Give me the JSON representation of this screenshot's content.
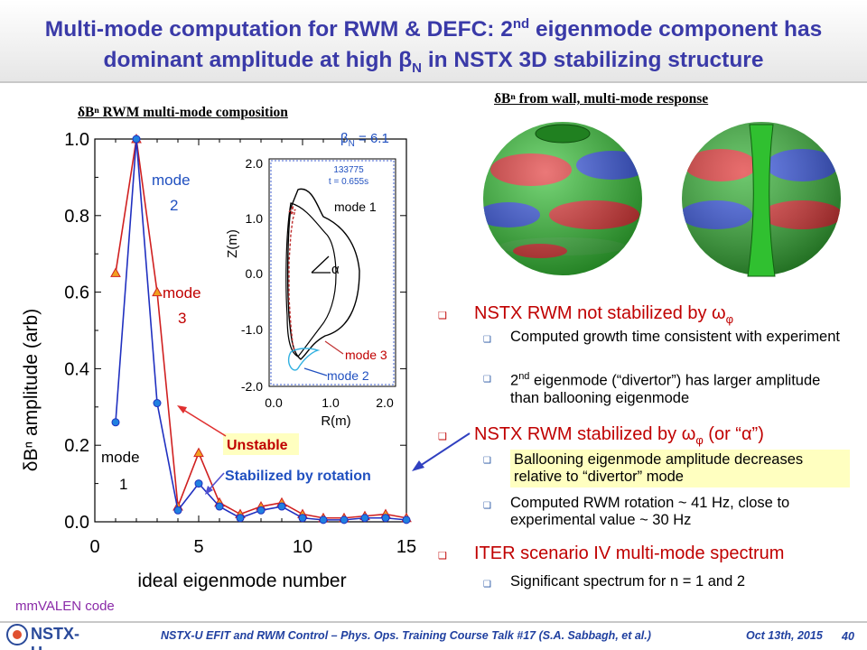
{
  "slide": {
    "title_line1_pre": "Multi-mode computation for RWM & DEFC: 2",
    "title_line1_sup": "nd",
    "title_line1_post": " eigenmode component has",
    "title_line2_pre": "dominant amplitude at high ",
    "title_line2_beta": "β",
    "title_line2_sub": "N",
    "title_line2_post": " in NSTX 3D stabilizing structure",
    "left_heading": "δBⁿ RWM multi-mode composition",
    "right_heading": "δBⁿ from wall, multi-mode response",
    "code_label": "mmVALEN code",
    "footer_logo": "NSTX-U",
    "footer_text": "NSTX-U EFIT and RWM Control – Phys. Ops. Training Course Talk #17 (S.A. Sabbagh, et al.)",
    "footer_date": "Oct 13th, 2015",
    "page_number": "40"
  },
  "chart_data": [
    {
      "type": "line",
      "x": [
        1,
        2,
        3,
        4,
        5,
        6,
        7,
        8,
        9,
        10,
        11,
        12,
        13,
        14,
        15
      ],
      "xlabel": "ideal eigenmode number",
      "ylabel": "δBⁿ amplitude (arb)",
      "xlim": [
        0,
        15
      ],
      "ylim": [
        0,
        1.0
      ],
      "xticks": [
        0,
        5,
        10,
        15
      ],
      "yticks": [
        "0.0",
        "0.2",
        "0.4",
        "0.6",
        "0.8",
        "1.0"
      ],
      "series": [
        {
          "name": "Unstable",
          "color": "#d02020",
          "marker": "triangle",
          "marker_color": "#f0a020",
          "values": [
            0.65,
            1.0,
            0.6,
            0.04,
            0.18,
            0.05,
            0.02,
            0.04,
            0.05,
            0.02,
            0.01,
            0.01,
            0.015,
            0.02,
            0.01
          ]
        },
        {
          "name": "Stabilized by rotation",
          "color": "#2030c0",
          "marker": "circle",
          "marker_color": "#2080e0",
          "values": [
            0.26,
            1.0,
            0.31,
            0.03,
            0.1,
            0.04,
            0.01,
            0.03,
            0.04,
            0.01,
            0.005,
            0.005,
            0.01,
            0.01,
            0.005
          ]
        }
      ],
      "annotations": {
        "beta": "β",
        "beta_sub": "N",
        "beta_value": " = 6.1",
        "mode2_word": "mode",
        "mode2_num": "2",
        "mode3_word": "mode",
        "mode3_num": "3",
        "mode1_word": "mode",
        "mode1_num": "1",
        "unstable": "Unstable",
        "stabilized": "Stabilized by rotation"
      }
    },
    {
      "type": "line",
      "xlabel": "R(m)",
      "ylabel": "Z(m)",
      "xlim": [
        0.0,
        2.0
      ],
      "ylim": [
        -2.0,
        2.0
      ],
      "xticks": [
        "0.0",
        "1.0",
        "2.0"
      ],
      "yticks": [
        "2.0",
        "1.0",
        "0.0",
        "-1.0",
        "-2.0"
      ],
      "shot": "133775",
      "time": "t = 0.655s",
      "labels": {
        "mode1": "mode 1",
        "mode3": "mode 3",
        "mode2": "mode 2",
        "angle": "α"
      }
    }
  ],
  "bullets": {
    "b1": "NSTX RWM not stabilized by ω",
    "b1_sub": "φ",
    "b1a": "Computed growth time consistent with experiment",
    "b1b_pre": "2",
    "b1b_sup": "nd",
    "b1b_post": " eigenmode (“divertor”) has larger amplitude than ballooning eigenmode",
    "b2_pre": "NSTX RWM stabilized by ω",
    "b2_sub": "φ",
    "b2_post": " (or “α”)",
    "b2a": "Ballooning eigenmode amplitude decreases relative to “divertor” mode",
    "b2b": "Computed RWM rotation ~ 41 Hz, close to experimental value ~ 30 Hz",
    "b3": "ITER scenario IV multi-mode spectrum",
    "b3a": "Significant spectrum for n = 1 and 2"
  },
  "colors": {
    "title": "#3a3aa8",
    "unstable_text": "#c00000",
    "unstable_bg": "#ffffc0",
    "stabilized_text": "#2050c0",
    "bullet_red": "#c00000",
    "footer": "#2040a0"
  }
}
